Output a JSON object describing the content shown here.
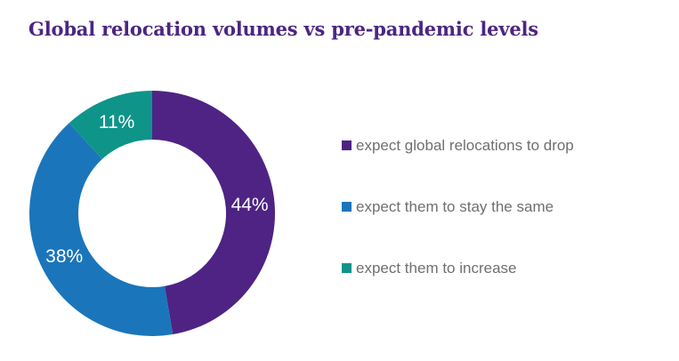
{
  "chart_data": {
    "type": "pie",
    "title": "Global relocation volumes vs pre-pandemic levels",
    "categories": [
      "expect global relocations to drop",
      "expect them to stay the same",
      "expect them to increase"
    ],
    "values": [
      44,
      38,
      11
    ],
    "data_labels": [
      "44%",
      "38%",
      "11%"
    ],
    "colors": [
      "#4e2384",
      "#1b75bb",
      "#0f948a"
    ],
    "donut": true,
    "start": "top, clockwise",
    "legend": "right"
  }
}
